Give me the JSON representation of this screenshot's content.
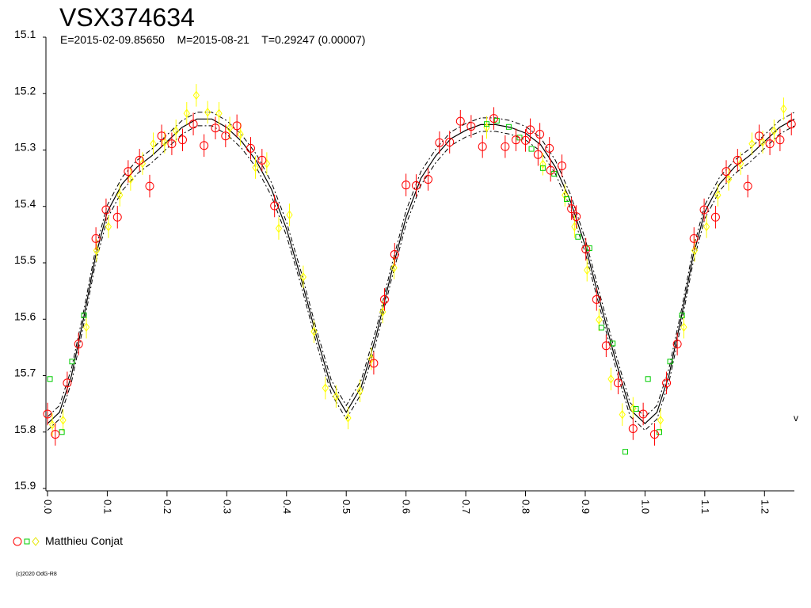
{
  "chart_data": {
    "type": "scatter",
    "title": "VSX374634",
    "subtitle": "E=2015-02-09.85650    M=2015-08-21    T=0.29247 (0.00007)",
    "legend": "Matthieu Conjat",
    "side_label": "v",
    "copyright": "(c)2020 OdG-R8",
    "xlim": [
      0,
      1.25
    ],
    "ylim": [
      15.1,
      15.9
    ],
    "y_inverted": true,
    "xticks": [
      {
        "value": 0,
        "label": "0.0"
      },
      0.1,
      0.2,
      0.3,
      0.4,
      0.5,
      0.6,
      0.7,
      0.8,
      0.9,
      {
        "value": 1,
        "label": "1.0"
      },
      1.1,
      1.2
    ],
    "yticks": [
      15.1,
      15.2,
      15.3,
      15.4,
      15.5,
      15.6,
      15.7,
      15.8,
      15.9
    ],
    "series": [
      {
        "marker": "circle",
        "color": "#ff0000",
        "error": 0.02,
        "x": [
          0.0,
          0.013,
          0.033,
          0.052,
          0.081,
          0.098,
          0.117,
          0.135,
          0.154,
          0.171,
          0.191,
          0.208,
          0.226,
          0.244,
          0.262,
          0.281,
          0.298,
          0.317,
          0.34,
          0.359,
          0.38,
          0.546,
          0.564,
          0.581,
          0.6,
          0.617,
          0.637,
          0.656,
          0.673,
          0.691,
          0.709,
          0.728,
          0.747,
          0.766,
          0.784,
          0.8,
          0.808,
          0.821,
          0.824,
          0.84,
          0.842,
          0.861,
          0.877,
          0.885,
          0.901,
          0.919,
          0.935,
          0.955,
          0.98,
          0.997,
          1.016,
          1.036,
          1.054,
          1.082,
          1.099,
          1.118,
          1.136,
          1.155,
          1.172,
          1.191,
          1.209,
          1.226,
          1.245
        ],
        "values": [
          15.768,
          15.804,
          15.713,
          15.644,
          15.457,
          15.406,
          15.419,
          15.338,
          15.318,
          15.364,
          15.275,
          15.289,
          15.282,
          15.254,
          15.292,
          15.261,
          15.275,
          15.257,
          15.297,
          15.318,
          15.399,
          15.678,
          15.565,
          15.485,
          15.362,
          15.363,
          15.352,
          15.287,
          15.286,
          15.249,
          15.258,
          15.294,
          15.244,
          15.294,
          15.282,
          15.283,
          15.264,
          15.308,
          15.272,
          15.297,
          15.336,
          15.328,
          15.404,
          15.418,
          15.476,
          15.565,
          15.647,
          15.713,
          15.794,
          15.768,
          15.804,
          15.713,
          15.644,
          15.457,
          15.406,
          15.419,
          15.338,
          15.318,
          15.364,
          15.275,
          15.289,
          15.282,
          15.254
        ]
      },
      {
        "marker": "square",
        "color": "#00cc00",
        "x": [
          0.004,
          0.024,
          0.041,
          0.061,
          0.735,
          0.752,
          0.772,
          0.79,
          0.81,
          0.829,
          0.848,
          0.869,
          0.888,
          0.907,
          0.927,
          0.946,
          0.967,
          0.985,
          1.005,
          1.024,
          1.042,
          1.062
        ],
        "values": [
          15.706,
          15.8,
          15.675,
          15.593,
          15.254,
          15.248,
          15.259,
          15.278,
          15.298,
          15.332,
          15.342,
          15.387,
          15.454,
          15.474,
          15.615,
          15.643,
          15.835,
          15.759,
          15.706,
          15.8,
          15.675,
          15.593
        ]
      },
      {
        "marker": "diamond",
        "color": "#ffff00",
        "error": 0.02,
        "x": [
          0.008,
          0.026,
          0.065,
          0.082,
          0.102,
          0.121,
          0.139,
          0.159,
          0.177,
          0.196,
          0.215,
          0.233,
          0.249,
          0.268,
          0.287,
          0.305,
          0.323,
          0.348,
          0.367,
          0.387,
          0.405,
          0.428,
          0.446,
          0.465,
          0.483,
          0.503,
          0.523,
          0.542,
          0.561,
          0.58,
          0.735,
          0.829,
          0.866,
          0.882,
          0.903,
          0.923,
          0.943,
          0.962,
          0.98,
          1.026,
          1.065,
          1.083,
          1.103,
          1.122,
          1.14,
          1.16,
          1.179,
          1.197,
          1.216,
          1.232
        ],
        "values": [
          15.787,
          15.779,
          15.614,
          15.478,
          15.436,
          15.38,
          15.352,
          15.324,
          15.289,
          15.286,
          15.266,
          15.235,
          15.203,
          15.233,
          15.235,
          15.261,
          15.272,
          15.331,
          15.324,
          15.439,
          15.415,
          15.525,
          15.622,
          15.722,
          15.737,
          15.775,
          15.727,
          15.67,
          15.587,
          15.509,
          15.26,
          15.325,
          15.38,
          15.436,
          15.513,
          15.601,
          15.706,
          15.769,
          15.758,
          15.779,
          15.614,
          15.478,
          15.436,
          15.38,
          15.352,
          15.324,
          15.289,
          15.286,
          15.266,
          15.227
        ]
      }
    ],
    "fit": {
      "band": 0.012,
      "x": [
        0,
        0.02,
        0.04,
        0.06,
        0.08,
        0.1,
        0.125,
        0.15,
        0.175,
        0.2,
        0.225,
        0.25,
        0.275,
        0.3,
        0.325,
        0.35,
        0.375,
        0.4,
        0.425,
        0.45,
        0.475,
        0.5,
        0.525,
        0.55,
        0.575,
        0.6,
        0.625,
        0.65,
        0.675,
        0.7,
        0.725,
        0.75,
        0.775,
        0.8,
        0.825,
        0.85,
        0.875,
        0.9,
        0.925,
        0.95,
        0.975,
        1.0,
        1.02,
        1.04,
        1.06,
        1.08,
        1.1,
        1.125,
        1.15,
        1.175,
        1.2,
        1.225,
        1.25
      ],
      "values": [
        15.785,
        15.765,
        15.7,
        15.6,
        15.49,
        15.41,
        15.36,
        15.33,
        15.31,
        15.285,
        15.26,
        15.245,
        15.245,
        15.26,
        15.285,
        15.32,
        15.37,
        15.44,
        15.53,
        15.63,
        15.72,
        15.765,
        15.72,
        15.63,
        15.52,
        15.42,
        15.35,
        15.31,
        15.28,
        15.265,
        15.255,
        15.255,
        15.26,
        15.27,
        15.29,
        15.33,
        15.39,
        15.47,
        15.57,
        15.67,
        15.76,
        15.785,
        15.765,
        15.7,
        15.6,
        15.49,
        15.41,
        15.36,
        15.33,
        15.31,
        15.285,
        15.26,
        15.245
      ]
    }
  }
}
